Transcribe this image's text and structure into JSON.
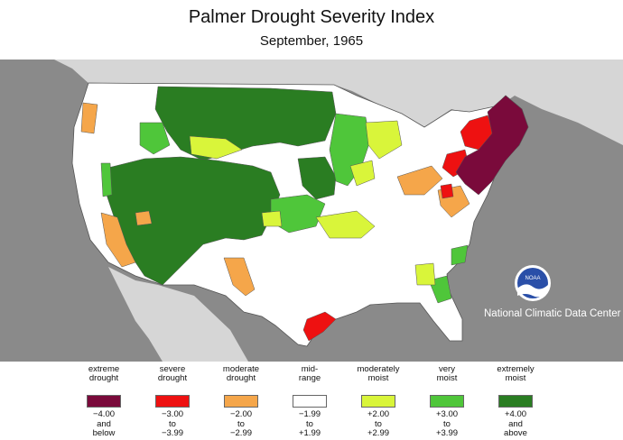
{
  "title": "Palmer Drought Severity Index",
  "subtitle": "September, 1965",
  "credit": "National Climatic Data Center",
  "logo_text": "NOAA",
  "colors": {
    "extreme_drought": "#7a0a3b",
    "severe_drought": "#ee1111",
    "moderate_drought": "#f5a64a",
    "mid_range": "#ffffff",
    "moderately_moist": "#d9f53a",
    "very_moist": "#4fc63a",
    "extremely_moist": "#2a7d22",
    "water": "#8a8a8a",
    "canada_mexico": "#d6d6d6"
  },
  "legend": [
    {
      "label": "extreme\ndrought",
      "range": "−4.00\nand\nbelow",
      "color": "#7a0a3b"
    },
    {
      "label": "severe\ndrought",
      "range": "−3.00\nto\n−3.99",
      "color": "#ee1111"
    },
    {
      "label": "moderate\ndrought",
      "range": "−2.00\nto\n−2.99",
      "color": "#f5a64a"
    },
    {
      "label": "mid-\nrange",
      "range": "−1.99\nto\n+1.99",
      "color": "#ffffff"
    },
    {
      "label": "moderately\nmoist",
      "range": "+2.00\nto\n+2.99",
      "color": "#d9f53a"
    },
    {
      "label": "very\nmoist",
      "range": "+3.00\nto\n+3.99",
      "color": "#4fc63a"
    },
    {
      "label": "extremely\nmoist",
      "range": "+4.00\nand\nabove",
      "color": "#2a7d22"
    }
  ]
}
